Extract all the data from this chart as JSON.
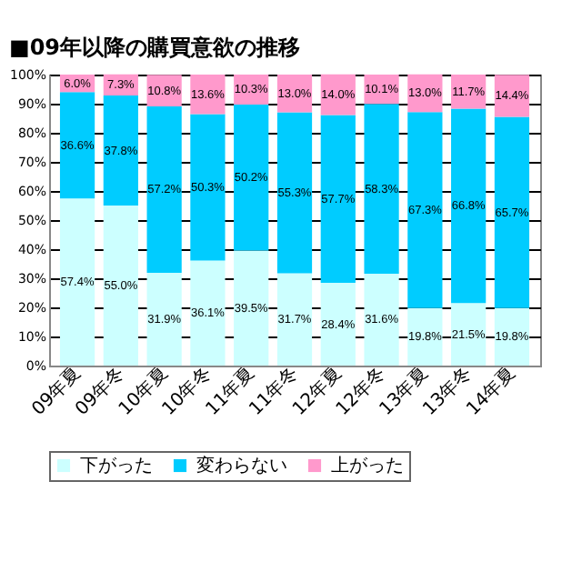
{
  "chart_data": {
    "type": "bar",
    "stacked": true,
    "title": "■09年以降の購買意欲の推移",
    "categories": [
      "09年夏",
      "09年冬",
      "10年夏",
      "10年冬",
      "11年夏",
      "11年冬",
      "12年夏",
      "12年冬",
      "13年夏",
      "13年冬",
      "14年夏"
    ],
    "series": [
      {
        "name": "下がった",
        "color": "#ccffff",
        "values": [
          57.4,
          55.0,
          31.9,
          36.1,
          39.5,
          31.7,
          28.4,
          31.6,
          19.8,
          21.5,
          19.8
        ],
        "value_labels": [
          "57.4%",
          "55.0%",
          "31.9%",
          "36.1%",
          "39.5%",
          "31.7%",
          "28.4%",
          "31.6%",
          "19.8%",
          "21.5%",
          "19.8%"
        ]
      },
      {
        "name": "変わらない",
        "color": "#00ccff",
        "values": [
          36.6,
          37.8,
          57.2,
          50.3,
          50.2,
          55.3,
          57.7,
          58.3,
          67.3,
          66.8,
          65.7
        ],
        "value_labels": [
          "36.6%",
          "37.8%",
          "57.2%",
          "50.3%",
          "50.2%",
          "55.3%",
          "57.7%",
          "58.3%",
          "67.3%",
          "66.8%",
          "65.7%"
        ]
      },
      {
        "name": "上がった",
        "color": "#ff99cc",
        "values": [
          6.0,
          7.3,
          10.8,
          13.6,
          10.3,
          13.0,
          14.0,
          10.1,
          13.0,
          11.7,
          14.4
        ],
        "value_labels": [
          "6.0%",
          "7.3%",
          "10.8%",
          "13.6%",
          "10.3%",
          "13.0%",
          "14.0%",
          "10.1%",
          "13.0%",
          "11.7%",
          "14.4%"
        ]
      }
    ],
    "ylim": [
      0,
      100
    ],
    "yticks": [
      {
        "value": 0,
        "label": "0%"
      },
      {
        "value": 10,
        "label": "10%"
      },
      {
        "value": 20,
        "label": "20%"
      },
      {
        "value": 30,
        "label": "30%"
      },
      {
        "value": 40,
        "label": "40%"
      },
      {
        "value": 50,
        "label": "50%"
      },
      {
        "value": 60,
        "label": "60%"
      },
      {
        "value": 70,
        "label": "70%"
      },
      {
        "value": 80,
        "label": "80%"
      },
      {
        "value": 90,
        "label": "90%"
      },
      {
        "value": 100,
        "label": "100%"
      }
    ],
    "grid": "y",
    "legend": "bottom"
  }
}
